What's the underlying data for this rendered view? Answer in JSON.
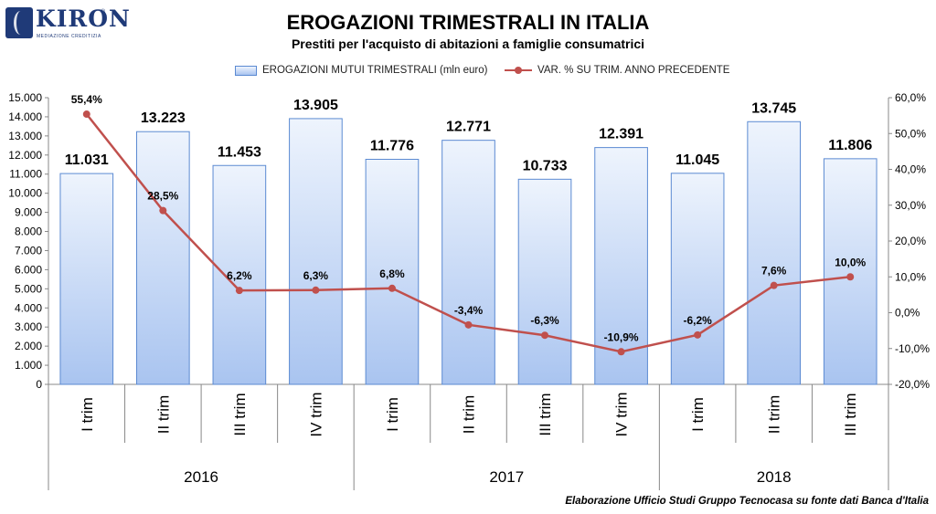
{
  "brand": {
    "name": "KIRON",
    "tm": "®",
    "tagline": "MEDIAZIONE CREDITIZIA"
  },
  "colors": {
    "bar_edge": "#5b8ad2",
    "bar_top": "#eef4fd",
    "bar_bottom": "#a9c4f0",
    "line": "#c0504d"
  },
  "chart_data": {
    "type": "bar+line",
    "title": "EROGAZIONI TRIMESTRALI IN ITALIA",
    "subtitle": "Prestiti per l'acquisto di abitazioni a famiglie consumatrici",
    "categories": [
      "I trim",
      "II trim",
      "III trim",
      "IV trim",
      "I trim",
      "II trim",
      "III trim",
      "IV trim",
      "I trim",
      "II trim",
      "III trim"
    ],
    "groups": [
      {
        "label": "2016",
        "count": 4
      },
      {
        "label": "2017",
        "count": 4
      },
      {
        "label": "2018",
        "count": 3
      }
    ],
    "series": [
      {
        "name": "EROGAZIONI MUTUI TRIMESTRALI (mln euro)",
        "type": "bar",
        "axis": "left",
        "values": [
          11031,
          13223,
          11453,
          13905,
          11776,
          12771,
          10733,
          12391,
          11045,
          13745,
          11806
        ],
        "labels": [
          "11.031",
          "13.223",
          "11.453",
          "13.905",
          "11.776",
          "12.771",
          "10.733",
          "12.391",
          "11.045",
          "13.745",
          "11.806"
        ]
      },
      {
        "name": "VAR. % SU TRIM. ANNO PRECEDENTE",
        "type": "line",
        "axis": "right",
        "values": [
          55.4,
          28.5,
          6.2,
          6.3,
          6.8,
          -3.4,
          -6.3,
          -10.9,
          -6.2,
          7.6,
          10.0
        ],
        "labels": [
          "55,4%",
          "28,5%",
          "6,2%",
          "6,3%",
          "6,8%",
          "-3,4%",
          "-6,3%",
          "-10,9%",
          "-6,2%",
          "7,6%",
          "10,0%"
        ]
      }
    ],
    "left_axis": {
      "ylim": [
        0,
        15000
      ],
      "ticks": [
        0,
        1000,
        2000,
        3000,
        4000,
        5000,
        6000,
        7000,
        8000,
        9000,
        10000,
        11000,
        12000,
        13000,
        14000,
        15000
      ],
      "tick_labels": [
        "0",
        "1.000",
        "2.000",
        "3.000",
        "4.000",
        "5.000",
        "6.000",
        "7.000",
        "8.000",
        "9.000",
        "10.000",
        "11.000",
        "12.000",
        "13.000",
        "14.000",
        "15.000"
      ]
    },
    "right_axis": {
      "ylim": [
        -20,
        60
      ],
      "ticks": [
        -20,
        -10,
        0,
        10,
        20,
        30,
        40,
        50,
        60
      ],
      "tick_labels": [
        "-20,0%",
        "-10,0%",
        "0,0%",
        "10,0%",
        "20,0%",
        "30,0%",
        "40,0%",
        "50,0%",
        "60,0%"
      ]
    },
    "grid": false,
    "legend": "top-center"
  },
  "footer": {
    "source": "Elaborazione Ufficio Studi Gruppo Tecnocasa su fonte dati Banca d'Italia"
  }
}
